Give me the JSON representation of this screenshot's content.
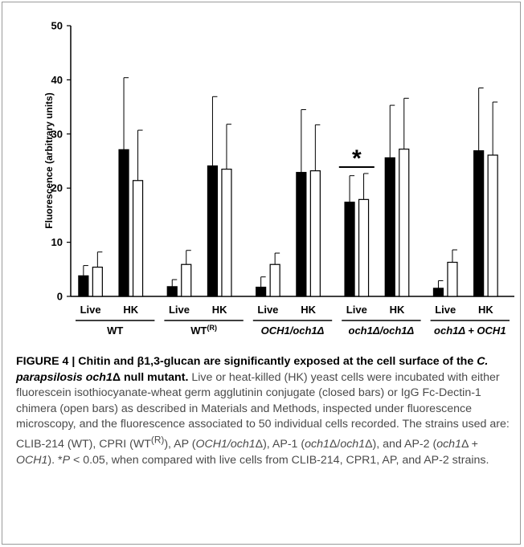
{
  "chart_data": {
    "type": "bar",
    "title": "",
    "xlabel": "",
    "ylabel": "Fluorescence (arbitrary units)",
    "ylim": [
      0,
      50
    ],
    "yticks": [
      "0",
      "10",
      "20",
      "30",
      "40",
      "50"
    ],
    "bar_labels": [
      "Live",
      "HK",
      "Live",
      "HK",
      "Live",
      "HK",
      "Live",
      "HK",
      "Live",
      "HK"
    ],
    "groups": [
      {
        "label": "WT",
        "sup": ""
      },
      {
        "label": "WT",
        "sup": "(R)"
      },
      {
        "label": "OCH1/och1Δ",
        "sup": ""
      },
      {
        "label": "och1Δ/och1Δ",
        "sup": ""
      },
      {
        "label": "och1Δ + OCH1",
        "sup": ""
      }
    ],
    "series": [
      {
        "fill": "#000000",
        "values": [
          3.8,
          27.1,
          1.8,
          24.1,
          1.7,
          22.9,
          17.4,
          25.6,
          1.5,
          26.9
        ],
        "errors": [
          1.9,
          13.3,
          1.3,
          12.8,
          1.9,
          11.6,
          4.9,
          9.7,
          1.4,
          11.6
        ]
      },
      {
        "fill": "#ffffff",
        "values": [
          5.4,
          21.4,
          5.9,
          23.5,
          5.9,
          23.2,
          17.9,
          27.2,
          6.3,
          26.1
        ],
        "errors": [
          2.8,
          9.3,
          2.6,
          8.3,
          2.1,
          8.5,
          4.8,
          9.4,
          2.3,
          9.8
        ]
      }
    ],
    "significance": {
      "marker": "*",
      "bar_index": 2
    }
  },
  "caption": {
    "figure_label": "FIGURE 4 | ",
    "title_1": "Chitin and β1,3-glucan are significantly exposed at the cell surface of the ",
    "title_species": "C. parapsilosis och1",
    "title_delta": "Δ",
    "title_2": " null mutant.",
    "body_1": " Live or heat-killed (HK) yeast cells were incubated with either fluorescein isothiocyanate-wheat germ agglutinin conjugate (closed bars) or IgG Fc-Dectin-1 chimera (open bars) as described in Materials and Methods, inspected under fluorescence microscopy, and the fluorescence associated to 50 individual cells recorded. The strains used are: CLIB-214 (WT), CPRI (WT",
    "body_sup": "(R)",
    "body_2": "), AP (",
    "body_ap": "OCH1/och1",
    "body_3": "Δ), AP-1 (",
    "body_ap1": "och1",
    "body_4": "Δ/",
    "body_ap1b": "och1",
    "body_5": "Δ), and AP-2 (",
    "body_ap2": "och1",
    "body_6": "Δ + ",
    "body_ap2b": "OCH1",
    "body_7": "). *",
    "body_p": "P",
    "body_8": " < 0.05, when compared with live cells from CLIB-214, CPR1, AP, and AP-2 strains."
  }
}
